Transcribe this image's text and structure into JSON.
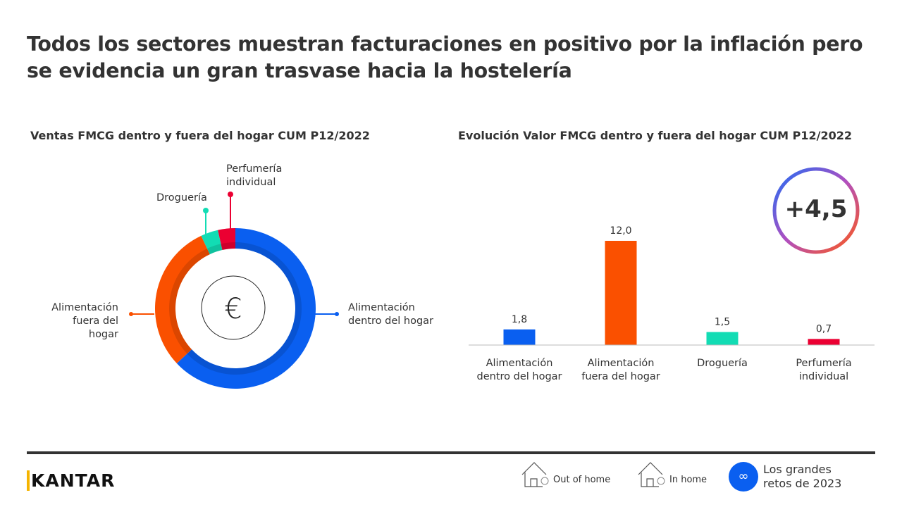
{
  "title": "Todos los sectores muestran facturaciones en positivo por la inflación pero se evidencia un gran trasvase hacia la hostelería",
  "chart_data": [
    {
      "type": "pie",
      "title": "Ventas FMCG dentro y fuera del hogar CUM P12/2022",
      "categories": [
        "Alimentación dentro del hogar",
        "Alimentación fuera del hogar",
        "Droguería",
        "Perfumería individual"
      ],
      "values": [
        63,
        30,
        3.5,
        3.5
      ],
      "colors": [
        "#0a5ff0",
        "#fa5000",
        "#12dcb4",
        "#eb0032"
      ],
      "center_icon": "euro-icon"
    },
    {
      "type": "bar",
      "title": "Evolución Valor FMCG dentro y fuera del hogar CUM P12/2022",
      "categories": [
        "Alimentación dentro del hogar",
        "Alimentación fuera del hogar",
        "Droguería",
        "Perfumería individual"
      ],
      "values": [
        1.8,
        12.0,
        1.5,
        0.7
      ],
      "data_labels": [
        "1,8",
        "12,0",
        "1,5",
        "0,7"
      ],
      "colors": [
        "#0a5ff0",
        "#fa5000",
        "#12dcb4",
        "#eb0032"
      ],
      "total_label": "+4,5"
    }
  ],
  "donut_labels": {
    "perfumeria": "Perfumería individual",
    "drogueria": "Droguería",
    "fuera": "Alimentación fuera del hogar",
    "dentro": "Alimentación dentro del hogar"
  },
  "bar_cats": [
    [
      "Alimentación",
      "dentro del hogar"
    ],
    [
      "Alimentación",
      "fuera del hogar"
    ],
    [
      "Droguería",
      ""
    ],
    [
      "Perfumería",
      "individual"
    ]
  ],
  "footer": {
    "logo": "KANTAR",
    "out_of_home": "Out of home",
    "in_home": "In home",
    "retos": "Los grandes retos de 2023"
  }
}
